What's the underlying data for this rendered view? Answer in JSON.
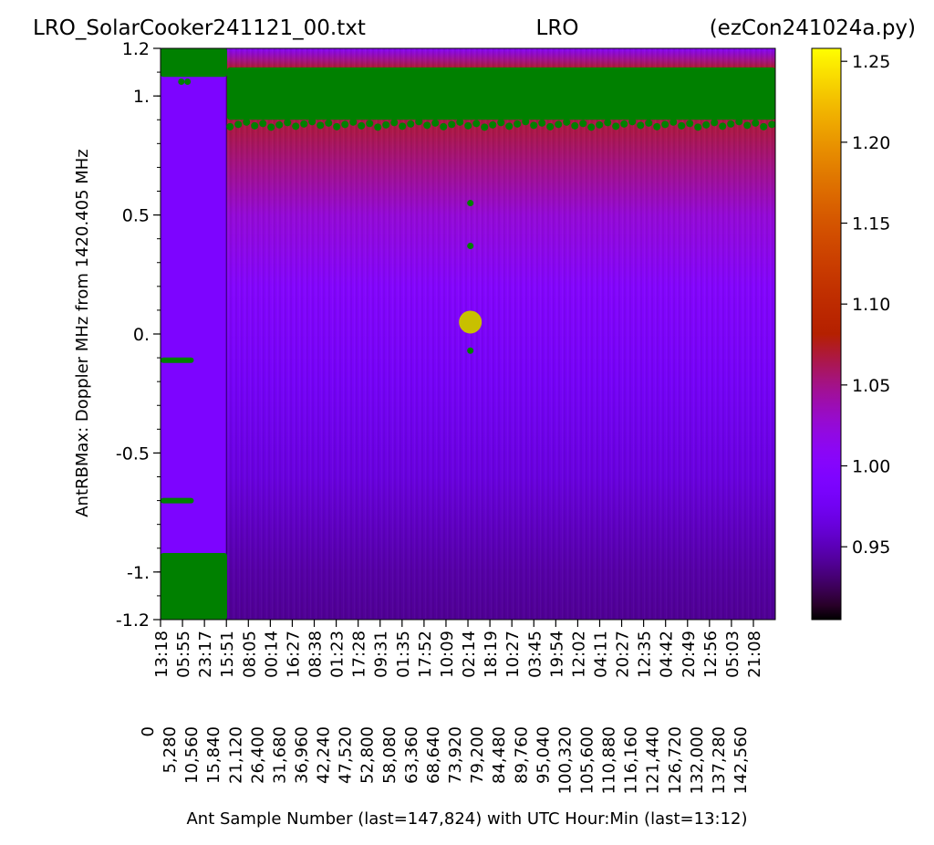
{
  "title": {
    "left": "LRO_SolarCooker241121_00.txt",
    "center": "LRO",
    "right": "(ezCon241024a.py)"
  },
  "chart_data": {
    "type": "heatmap",
    "xlabel": "Ant Sample Number (last=147,824) with UTC Hour:Min (last=13:12)",
    "ylabel": "AntRBMax:  Doppler MHz from 1420.405 MHz",
    "xlim": [
      0,
      147824
    ],
    "ylim": [
      -1.2,
      1.2
    ],
    "y_ticks": [
      {
        "value": 1.2,
        "label": "1.2"
      },
      {
        "value": 1.0,
        "label": "1."
      },
      {
        "value": 0.5,
        "label": "0.5"
      },
      {
        "value": 0.0,
        "label": "0."
      },
      {
        "value": -0.5,
        "label": "-0.5"
      },
      {
        "value": -1.0,
        "label": "-1."
      },
      {
        "value": -1.2,
        "label": "-1.2"
      }
    ],
    "y_minor_step": 0.1,
    "x_ticks": [
      {
        "value": 0,
        "sample": "0",
        "time": "13:18"
      },
      {
        "value": 5280,
        "sample": "5,280",
        "time": "05:55"
      },
      {
        "value": 10560,
        "sample": "10,560",
        "time": "23:17"
      },
      {
        "value": 15840,
        "sample": "15,840",
        "time": "15:51"
      },
      {
        "value": 21120,
        "sample": "21,120",
        "time": "08:05"
      },
      {
        "value": 26400,
        "sample": "26,400",
        "time": "00:14"
      },
      {
        "value": 31680,
        "sample": "31,680",
        "time": "16:27"
      },
      {
        "value": 36960,
        "sample": "36,960",
        "time": "08:38"
      },
      {
        "value": 42240,
        "sample": "42,240",
        "time": "01:23"
      },
      {
        "value": 47520,
        "sample": "47,520",
        "time": "17:28"
      },
      {
        "value": 52800,
        "sample": "52,800",
        "time": "09:31"
      },
      {
        "value": 58080,
        "sample": "58,080",
        "time": "01:35"
      },
      {
        "value": 63360,
        "sample": "63,360",
        "time": "17:52"
      },
      {
        "value": 68640,
        "sample": "68,640",
        "time": "10:09"
      },
      {
        "value": 73920,
        "sample": "73,920",
        "time": "02:14"
      },
      {
        "value": 79200,
        "sample": "79,200",
        "time": "18:19"
      },
      {
        "value": 84480,
        "sample": "84,480",
        "time": "10:27"
      },
      {
        "value": 89760,
        "sample": "89,760",
        "time": "03:45"
      },
      {
        "value": 95040,
        "sample": "95,040",
        "time": "19:54"
      },
      {
        "value": 100320,
        "sample": "100,320",
        "time": "12:02"
      },
      {
        "value": 105600,
        "sample": "105,600",
        "time": "04:11"
      },
      {
        "value": 110880,
        "sample": "110,880",
        "time": "20:27"
      },
      {
        "value": 116160,
        "sample": "116,160",
        "time": "12:35"
      },
      {
        "value": 121440,
        "sample": "121,440",
        "time": "04:42"
      },
      {
        "value": 126720,
        "sample": "126,720",
        "time": "20:49"
      },
      {
        "value": 132000,
        "sample": "132,000",
        "time": "12:56"
      },
      {
        "value": 137280,
        "sample": "137,280",
        "time": "05:03"
      },
      {
        "value": 142560,
        "sample": "142,560",
        "time": "21:08"
      }
    ],
    "colorbar": {
      "cmap": "gnuplot",
      "range": [
        0.905,
        1.258
      ],
      "ticks": [
        {
          "value": 0.95,
          "label": "0.95"
        },
        {
          "value": 1.0,
          "label": "1.00"
        },
        {
          "value": 1.05,
          "label": "1.05"
        },
        {
          "value": 1.1,
          "label": "1.10"
        },
        {
          "value": 1.15,
          "label": "1.15"
        },
        {
          "value": 1.2,
          "label": "1.20"
        },
        {
          "value": 1.25,
          "label": "1.25"
        }
      ]
    },
    "segment_boundary_x": 15840,
    "mask_color": "#008000",
    "masked_regions": [
      {
        "x": [
          0,
          16000
        ],
        "y": [
          1.08,
          1.2
        ],
        "note": "left top, ragged"
      },
      {
        "x": [
          16000,
          147824
        ],
        "y": [
          0.9,
          1.12
        ]
      },
      {
        "x": [
          0,
          16000
        ],
        "y": [
          -1.2,
          -0.92
        ],
        "note": "left bottom, ragged"
      }
    ],
    "masked_lines_left": [
      {
        "y": -0.11
      },
      {
        "y": -0.7
      }
    ],
    "highlight_point": {
      "x": 74500,
      "y": 0.05,
      "color": "#c8c000"
    },
    "small_points": [
      {
        "x": 74500,
        "y": 0.55
      },
      {
        "x": 74500,
        "y": 0.37
      },
      {
        "x": 74500,
        "y": -0.07
      },
      {
        "x": 5000,
        "y": 1.06
      },
      {
        "x": 6500,
        "y": 1.06
      }
    ],
    "value_profile": [
      {
        "y": 1.2,
        "v": 1.0
      },
      {
        "y": 1.15,
        "v": 1.05
      },
      {
        "y": 1.12,
        "v": 1.07
      },
      {
        "y": 0.85,
        "v": 1.065
      },
      {
        "y": 0.7,
        "v": 1.05
      },
      {
        "y": 0.5,
        "v": 1.025
      },
      {
        "y": 0.2,
        "v": 1.0
      },
      {
        "y": -0.2,
        "v": 0.98
      },
      {
        "y": -0.6,
        "v": 0.965
      },
      {
        "y": -1.0,
        "v": 0.945
      },
      {
        "y": -1.2,
        "v": 0.94
      }
    ],
    "left_segment_value": 0.99
  }
}
